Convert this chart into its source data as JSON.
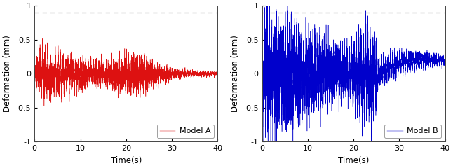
{
  "subplot_left": {
    "label": "Model A",
    "color": "#dd1111",
    "xlabel": "Time(s)",
    "ylabel": "Deformation (mm)",
    "xlim": [
      0,
      40
    ],
    "ylim": [
      -1,
      1
    ],
    "yticks": [
      -1,
      -0.5,
      0,
      0.5,
      1
    ],
    "xticks": [
      0,
      10,
      20,
      30,
      40
    ],
    "dashed_line_y": 0.9
  },
  "subplot_right": {
    "label": "Model B",
    "color": "#0000cc",
    "xlabel": "Time(s)",
    "ylabel": "Deformation (mm)",
    "xlim": [
      0,
      40
    ],
    "ylim": [
      -1,
      1
    ],
    "yticks": [
      -1,
      -0.5,
      0,
      0.5,
      1
    ],
    "xticks": [
      0,
      10,
      20,
      30,
      40
    ],
    "dashed_line_y": 0.9
  },
  "background_color": "#ffffff",
  "legend_fontsize": 8,
  "axis_fontsize": 8.5,
  "tick_fontsize": 8
}
